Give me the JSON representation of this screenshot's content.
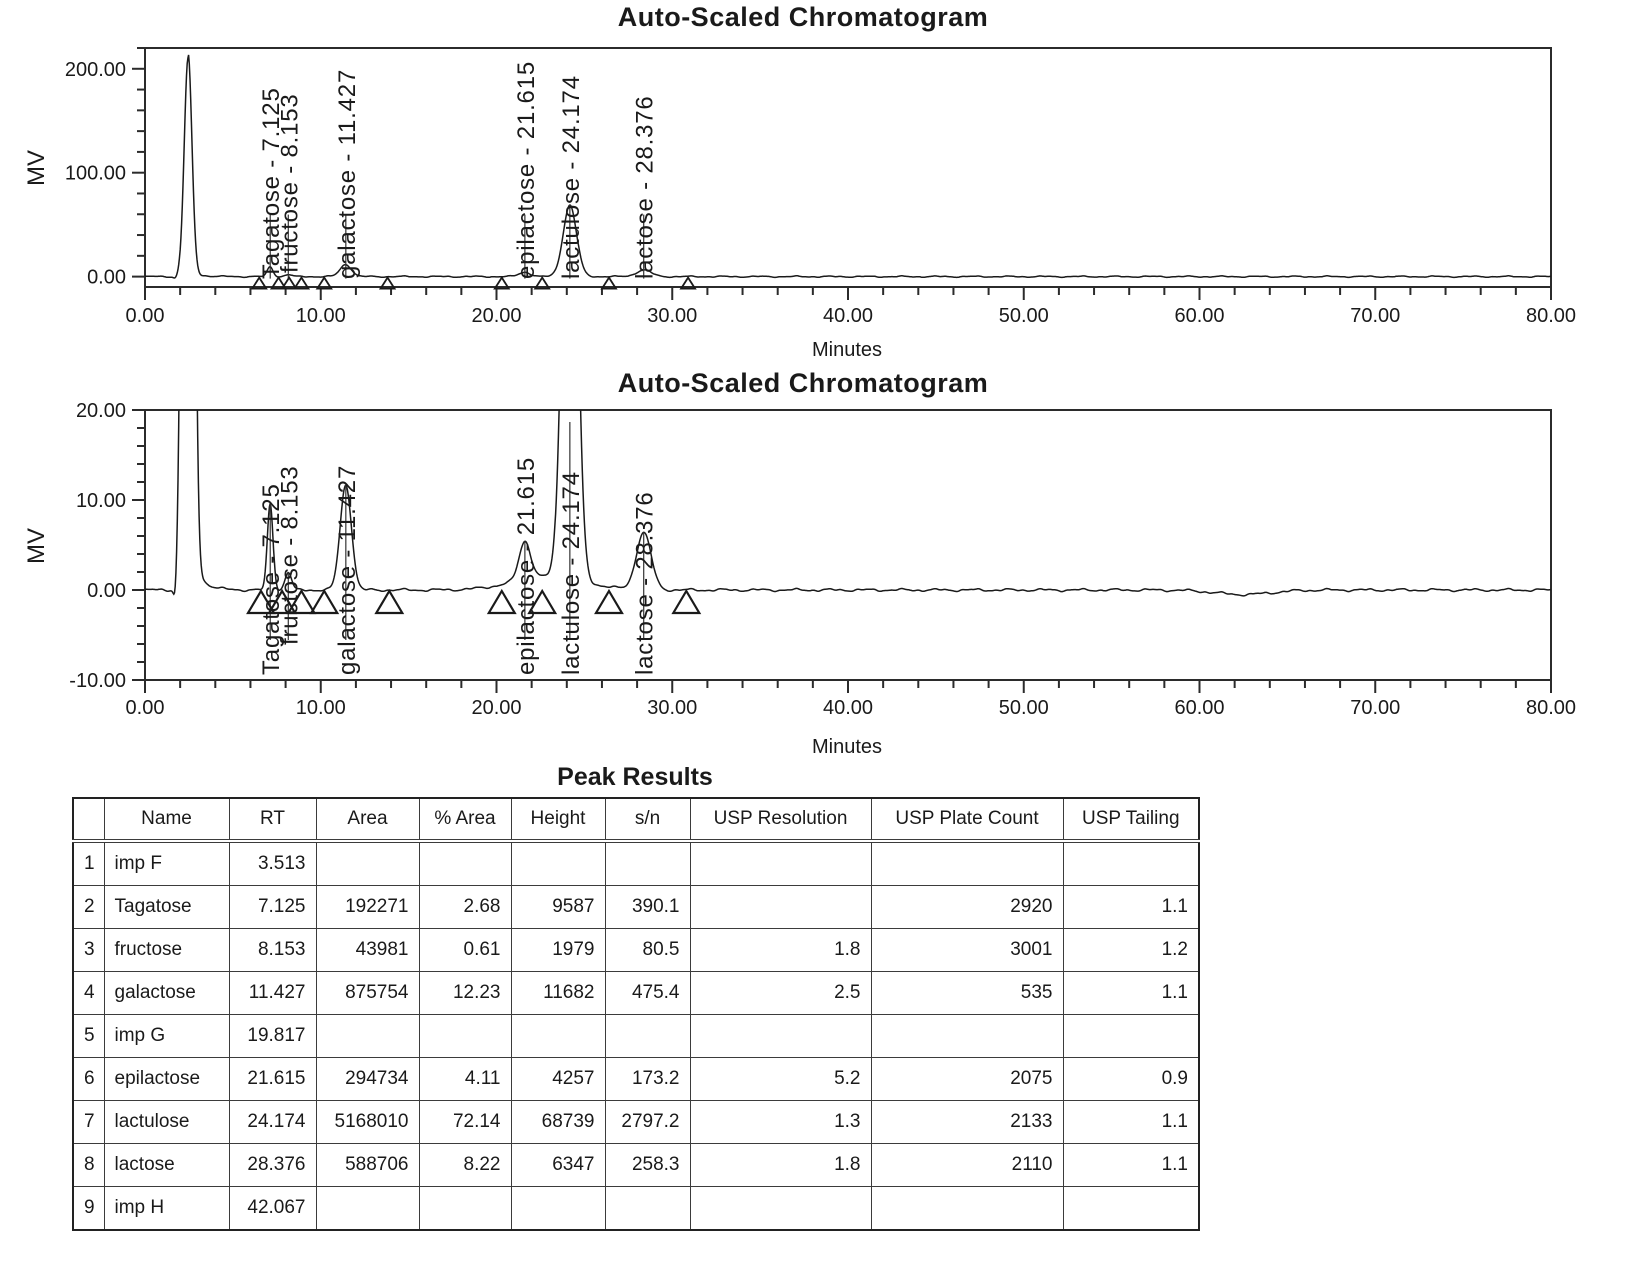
{
  "page": {
    "background": "#ffffff",
    "line_color": "#1a1a1a",
    "text_color": "#1a1a1a"
  },
  "chart_data": [
    {
      "type": "line",
      "title": "Auto-Scaled Chromatogram",
      "xlabel": "Minutes",
      "ylabel": "MV",
      "grid": false,
      "xlim": [
        0,
        80
      ],
      "xticks": [
        0,
        10,
        20,
        30,
        40,
        50,
        60,
        70,
        80
      ],
      "xtick_labels": [
        "0.00",
        "10.00",
        "20.00",
        "30.00",
        "40.00",
        "50.00",
        "60.00",
        "70.00",
        "80.00"
      ],
      "x_minor_step": 2,
      "ylim": [
        -10,
        220
      ],
      "yticks": [
        0,
        100,
        200
      ],
      "ytick_labels": [
        "0.00",
        "100.00",
        "200.00"
      ],
      "y_minor_step": 20,
      "noise_mv": 0.8,
      "solvent_peak": {
        "rt_min": 2.45,
        "height_mv": 210,
        "sigma_min": 0.22
      },
      "baseline_dips": [
        {
          "rt_min": 1.72,
          "depth_mv": 1.6,
          "sigma_min": 0.09
        }
      ],
      "baseline_hump": null,
      "peaks": [
        {
          "name": "Tagatose",
          "label": "Tagatose - 7.125",
          "rt_min": 7.125,
          "height_mv": 9.59,
          "sigma_min": 0.16
        },
        {
          "name": "fructose",
          "label": "fructose - 8.153",
          "rt_min": 8.153,
          "height_mv": 1.98,
          "sigma_min": 0.18
        },
        {
          "name": "galactose",
          "label": "galactose - 11.427",
          "rt_min": 11.427,
          "height_mv": 11.68,
          "sigma_min": 0.32
        },
        {
          "name": "epilactose",
          "label": "epilactose - 21.615",
          "rt_min": 21.615,
          "height_mv": 4.26,
          "sigma_min": 0.33
        },
        {
          "name": "lactulose",
          "label": "lactulose - 24.174",
          "rt_min": 24.174,
          "height_mv": 68.74,
          "sigma_min": 0.38
        },
        {
          "name": "lactose",
          "label": "lactose - 28.376",
          "rt_min": 28.376,
          "height_mv": 6.35,
          "sigma_min": 0.42
        }
      ],
      "integration_markers_min": [
        6.5,
        7.6,
        8.2,
        8.9,
        10.2,
        13.8,
        20.3,
        22.6,
        26.4,
        30.9
      ]
    },
    {
      "type": "line",
      "title": "Auto-Scaled Chromatogram",
      "xlabel": "Minutes",
      "ylabel": "MV",
      "grid": false,
      "xlim": [
        0,
        80
      ],
      "xticks": [
        0,
        10,
        20,
        30,
        40,
        50,
        60,
        70,
        80
      ],
      "xtick_labels": [
        "0.00",
        "10.00",
        "20.00",
        "30.00",
        "40.00",
        "50.00",
        "60.00",
        "70.00",
        "80.00"
      ],
      "x_minor_step": 2,
      "ylim": [
        -10,
        20
      ],
      "yticks": [
        -10,
        0,
        10,
        20
      ],
      "ytick_labels": [
        "-10.00",
        "0.00",
        "10.00",
        "20.00"
      ],
      "y_minor_step": 2,
      "noise_mv": 0.18,
      "solvent_peak": {
        "rt_min": 2.45,
        "height_mv": 210,
        "sigma_min": 0.24
      },
      "baseline_dips": [
        {
          "rt_min": 1.72,
          "depth_mv": 1.6,
          "sigma_min": 0.09
        },
        {
          "rt_min": 62.5,
          "depth_mv": 0.5,
          "sigma_min": 1.6
        }
      ],
      "baseline_hump": {
        "rt_min": 23.0,
        "height_mv": 1.5,
        "sigma_min": 2.0
      },
      "peaks": [
        {
          "name": "Tagatose",
          "label": "Tagatose - 7.125",
          "rt_min": 7.125,
          "height_mv": 9.59,
          "sigma_min": 0.16
        },
        {
          "name": "fructose",
          "label": "fructose - 8.153",
          "rt_min": 8.153,
          "height_mv": 1.98,
          "sigma_min": 0.18
        },
        {
          "name": "galactose",
          "label": "galactose - 11.427",
          "rt_min": 11.427,
          "height_mv": 11.68,
          "sigma_min": 0.32
        },
        {
          "name": "epilactose",
          "label": "epilactose - 21.615",
          "rt_min": 21.615,
          "height_mv": 4.26,
          "sigma_min": 0.33
        },
        {
          "name": "lactulose",
          "label": "lactulose - 24.174",
          "rt_min": 24.174,
          "height_mv": 68.74,
          "sigma_min": 0.38
        },
        {
          "name": "lactose",
          "label": "lactose - 28.376",
          "rt_min": 28.376,
          "height_mv": 6.35,
          "sigma_min": 0.42
        }
      ],
      "integration_markers_min": [
        6.6,
        7.8,
        8.9,
        10.2,
        13.9,
        20.3,
        22.6,
        26.4,
        30.8
      ]
    }
  ],
  "table": {
    "title": "Peak Results",
    "headers": [
      "",
      "Name",
      "RT",
      "Area",
      "% Area",
      "Height",
      "s/n",
      "USP Resolution",
      "USP Plate Count",
      "USP Tailing"
    ],
    "rows": [
      [
        "1",
        "imp F",
        "3.513",
        "",
        "",
        "",
        "",
        "",
        "",
        ""
      ],
      [
        "2",
        "Tagatose",
        "7.125",
        "192271",
        "2.68",
        "9587",
        "390.1",
        "",
        "2920",
        "1.1"
      ],
      [
        "3",
        "fructose",
        "8.153",
        "43981",
        "0.61",
        "1979",
        "80.5",
        "1.8",
        "3001",
        "1.2"
      ],
      [
        "4",
        "galactose",
        "11.427",
        "875754",
        "12.23",
        "11682",
        "475.4",
        "2.5",
        "535",
        "1.1"
      ],
      [
        "5",
        "imp G",
        "19.817",
        "",
        "",
        "",
        "",
        "",
        "",
        ""
      ],
      [
        "6",
        "epilactose",
        "21.615",
        "294734",
        "4.11",
        "4257",
        "173.2",
        "5.2",
        "2075",
        "0.9"
      ],
      [
        "7",
        "lactulose",
        "24.174",
        "5168010",
        "72.14",
        "68739",
        "2797.2",
        "1.3",
        "2133",
        "1.1"
      ],
      [
        "8",
        "lactose",
        "28.376",
        "588706",
        "8.22",
        "6347",
        "258.3",
        "1.8",
        "2110",
        "1.1"
      ],
      [
        "9",
        "imp H",
        "42.067",
        "",
        "",
        "",
        "",
        "",
        "",
        ""
      ]
    ]
  }
}
